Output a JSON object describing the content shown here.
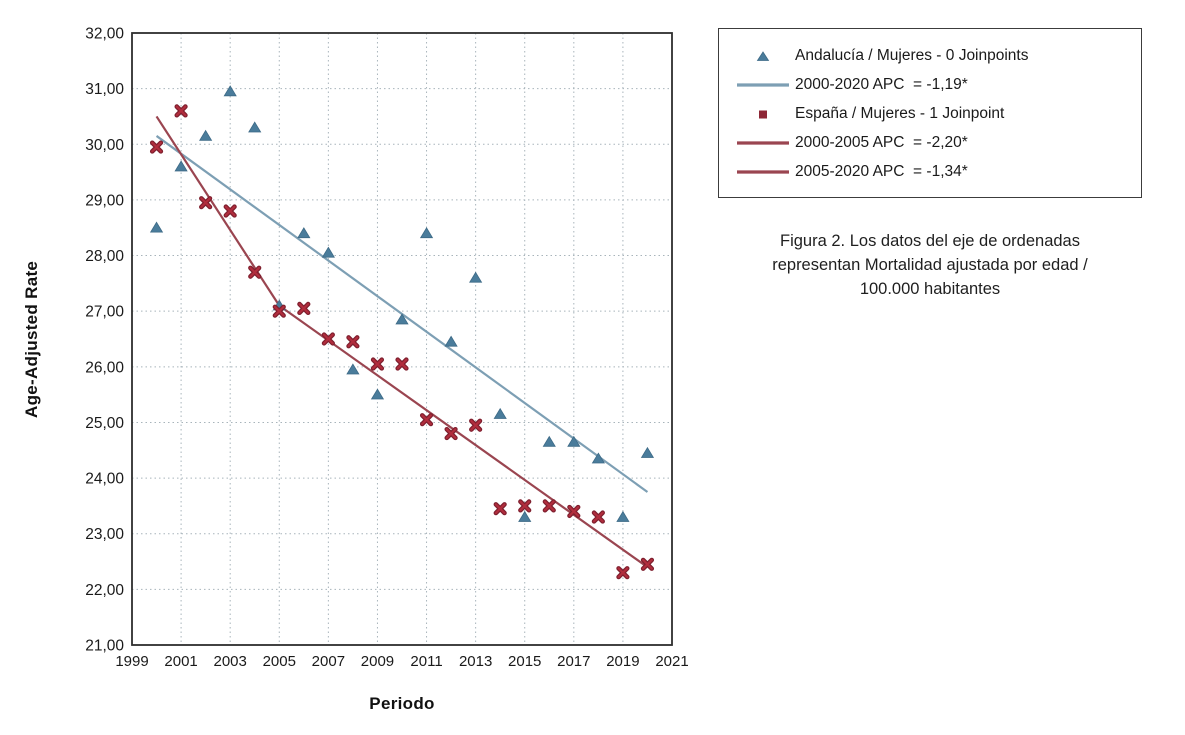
{
  "figure": {
    "caption_text": "Figura 2. Los datos del eje de ordenadas\nrepresentan Mortalidad ajustada por edad /\n100.000 habitantes"
  },
  "legend": {
    "items": [
      {
        "swatch": "triangle",
        "color": "#4a7c9b",
        "label": "Andalucía / Mujeres - 0 Joinpoints"
      },
      {
        "swatch": "line",
        "color": "#7d9fb4",
        "label": "2000-2020 APC  = -1,19*"
      },
      {
        "swatch": "square",
        "color": "#8e2736",
        "label": "España / Mujeres - 1 Joinpoint"
      },
      {
        "swatch": "line",
        "color": "#9a4550",
        "label": "2000-2005 APC  = -2,20*"
      },
      {
        "swatch": "line",
        "color": "#9a4550",
        "label": "2005-2020 APC  = -1,34*"
      }
    ]
  },
  "chart_data": {
    "type": "scatter",
    "title": "",
    "xlabel": "Periodo",
    "ylabel": "Age-Adjusted Rate",
    "xlim": [
      1999,
      2021
    ],
    "ylim": [
      21,
      32
    ],
    "grid": true,
    "legend_position": "outside-top-right",
    "x_tick_labels": [
      "1999",
      "2001",
      "2003",
      "2005",
      "2007",
      "2009",
      "2011",
      "2013",
      "2015",
      "2017",
      "2019",
      "2021"
    ],
    "y_tick_labels": [
      "32,00",
      "31,00",
      "30,00",
      "29,00",
      "28,00",
      "27,00",
      "26,00",
      "25,00",
      "24,00",
      "23,00",
      "22,00",
      "21,00"
    ],
    "x": [
      2000,
      2001,
      2002,
      2003,
      2004,
      2005,
      2006,
      2007,
      2008,
      2009,
      2010,
      2011,
      2012,
      2013,
      2014,
      2015,
      2016,
      2017,
      2018,
      2019,
      2020
    ],
    "series": [
      {
        "name": "Andalucía / Mujeres - 0 Joinpoints",
        "marker": "triangle",
        "color": "#4a7c9b",
        "values": [
          28.5,
          29.6,
          30.15,
          30.95,
          30.3,
          27.1,
          28.4,
          28.05,
          25.95,
          25.5,
          26.85,
          28.4,
          26.45,
          27.6,
          25.15,
          23.3,
          24.65,
          24.65,
          24.35,
          23.3,
          24.45
        ]
      },
      {
        "name": "España / Mujeres - 1 Joinpoint",
        "marker": "x",
        "color": "#b12d3d",
        "values": [
          29.95,
          30.6,
          28.95,
          28.8,
          27.7,
          27.0,
          27.05,
          26.5,
          26.45,
          26.05,
          26.05,
          25.05,
          24.8,
          24.95,
          23.45,
          23.5,
          23.5,
          23.4,
          23.3,
          22.3,
          22.45
        ]
      }
    ],
    "trend_lines": [
      {
        "label": "2000-2020 APC  = -1,19*",
        "color": "#7d9fb4",
        "points": [
          [
            2000,
            30.15
          ],
          [
            2020,
            23.75
          ]
        ]
      },
      {
        "label": "2000-2005 APC  = -2,20*",
        "color": "#9a4550",
        "points": [
          [
            2000,
            30.5
          ],
          [
            2005,
            27.1
          ]
        ]
      },
      {
        "label": "2005-2020 APC  = -1,34*",
        "color": "#9a4550",
        "points": [
          [
            2005,
            27.1
          ],
          [
            2020,
            22.4
          ]
        ]
      }
    ]
  }
}
